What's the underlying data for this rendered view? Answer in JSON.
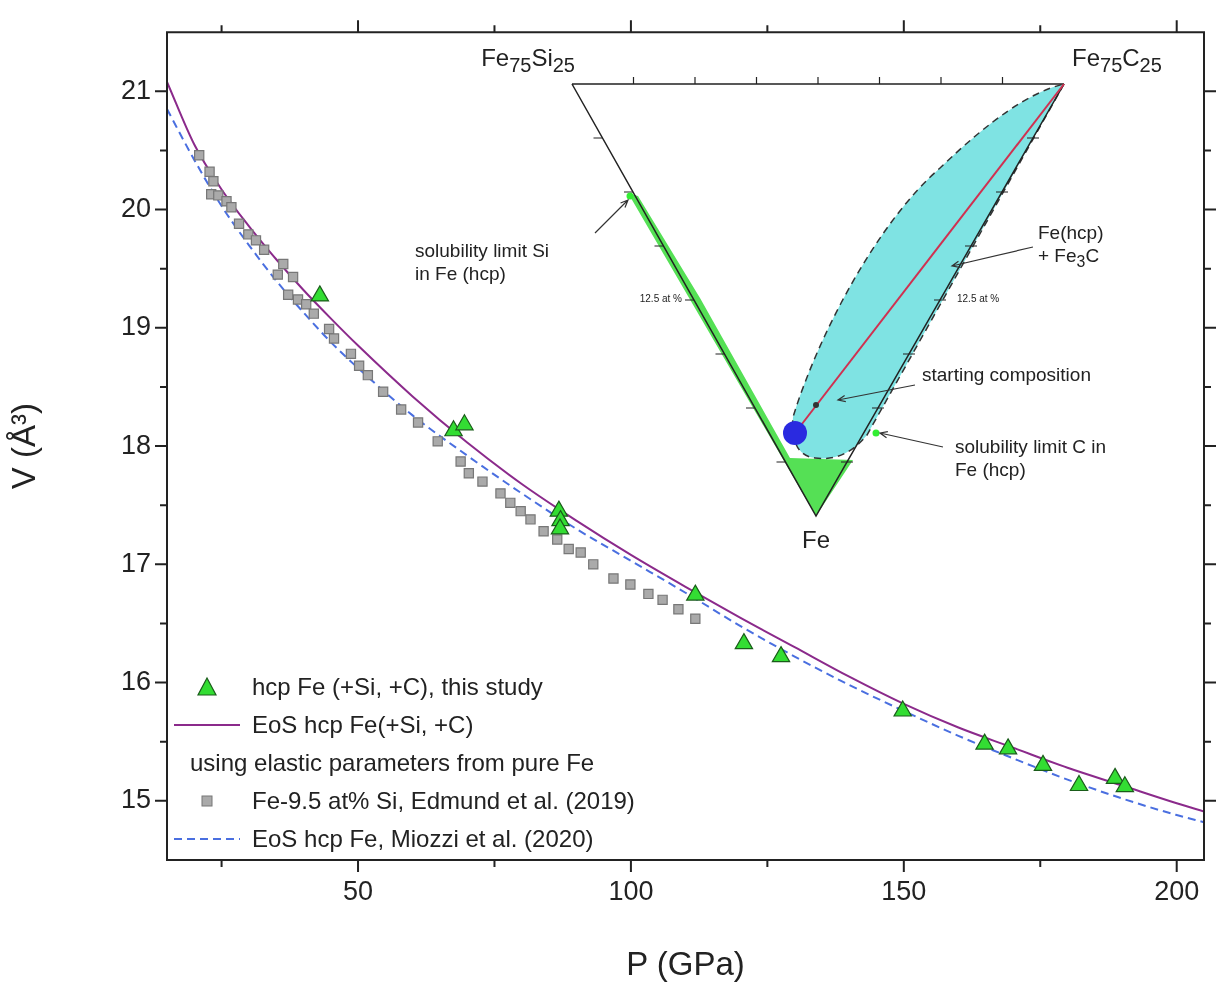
{
  "chart_data": {
    "type": "scatter",
    "xlabel": "P (GPa)",
    "ylabel": "V (Å³)",
    "xlim": [
      15,
      205
    ],
    "ylim": [
      14.5,
      21.5
    ],
    "xticks": [
      {
        "value": 25,
        "label": null
      },
      50,
      {
        "value": 75,
        "label": null
      },
      100,
      {
        "value": 125,
        "label": null
      },
      150,
      {
        "value": 175,
        "label": null
      },
      200
    ],
    "yticks": [
      15,
      {
        "value": 15.5,
        "label": null
      },
      16,
      {
        "value": 16.5,
        "label": null
      },
      17,
      {
        "value": 17.5,
        "label": null
      },
      18,
      {
        "value": 18.5,
        "label": null
      },
      19,
      {
        "value": 19.5,
        "label": null
      },
      20,
      {
        "value": 20.5,
        "label": null
      },
      21
    ],
    "legend": "bottom left",
    "series": [
      {
        "name": "hcp Fe (+Si, +C), this study",
        "type": "scatter",
        "marker": "triangle",
        "color": "#33dd33",
        "x": [
          43.0,
          67.5,
          69.5,
          86.8,
          87.1,
          87.0,
          111.8,
          120.7,
          127.5,
          149.8,
          164.8,
          169.1,
          175.5,
          182.1,
          188.7,
          190.5
        ],
        "values": [
          19.27,
          18.13,
          18.18,
          17.45,
          17.37,
          17.3,
          16.74,
          16.33,
          16.22,
          15.76,
          15.48,
          15.44,
          15.3,
          15.13,
          15.19,
          15.12
        ]
      },
      {
        "name": "EoS hcp Fe(+Si, +C)\nusing elastic parameters from pure Fe",
        "type": "line",
        "marker": "none",
        "line_style": "solid",
        "color": "#8b2a8b",
        "x": [
          15,
          20,
          25,
          30,
          35,
          40,
          45,
          50,
          60,
          70,
          80,
          90,
          100,
          110,
          120,
          130,
          140,
          150,
          160,
          170,
          180,
          190,
          200,
          205
        ],
        "values": [
          21.08,
          20.55,
          20.17,
          19.86,
          19.58,
          19.32,
          19.08,
          18.85,
          18.42,
          18.03,
          17.68,
          17.37,
          17.08,
          16.81,
          16.55,
          16.3,
          16.05,
          15.82,
          15.62,
          15.45,
          15.28,
          15.13,
          14.98,
          14.91
        ]
      },
      {
        "name": "Fe-9.5 at% Si, Edmund et al. (2019)",
        "type": "scatter",
        "marker": "square",
        "color": "#aaaaaa",
        "x": [
          20.9,
          22.8,
          23.5,
          23.1,
          24.4,
          25.9,
          26.8,
          28.2,
          29.9,
          31.3,
          32.8,
          36.3,
          35.3,
          38.1,
          37.2,
          39.0,
          40.5,
          41.9,
          44.7,
          45.6,
          48.7,
          50.2,
          51.8,
          54.6,
          57.9,
          61.0,
          64.6,
          68.8,
          70.3,
          72.8,
          76.1,
          77.9,
          79.8,
          81.6,
          84.0,
          86.5,
          88.6,
          90.8,
          93.1,
          96.8,
          99.9,
          103.2,
          105.8,
          108.7,
          111.8
        ],
        "values": [
          20.46,
          20.32,
          20.24,
          20.13,
          20.12,
          20.07,
          20.02,
          19.88,
          19.79,
          19.74,
          19.66,
          19.54,
          19.45,
          19.43,
          19.28,
          19.24,
          19.2,
          19.12,
          18.99,
          18.91,
          18.78,
          18.68,
          18.6,
          18.46,
          18.31,
          18.2,
          18.04,
          17.87,
          17.77,
          17.7,
          17.6,
          17.52,
          17.45,
          17.38,
          17.28,
          17.21,
          17.13,
          17.1,
          17.0,
          16.88,
          16.83,
          16.75,
          16.7,
          16.62,
          16.54
        ]
      },
      {
        "name": "EoS hcp Fe, Miozzi et al. (2020)",
        "type": "line",
        "marker": "none",
        "line_style": "dashed",
        "color": "#4a6fe0",
        "x": [
          15,
          20,
          25,
          30,
          35,
          40,
          45,
          50,
          60,
          70,
          80,
          90,
          100,
          110,
          120,
          130,
          140,
          150,
          160,
          170,
          180,
          190,
          200,
          205
        ],
        "values": [
          20.85,
          20.42,
          20.03,
          19.7,
          19.4,
          19.13,
          18.88,
          18.66,
          18.26,
          17.92,
          17.6,
          17.3,
          17.03,
          16.76,
          16.48,
          16.22,
          15.98,
          15.76,
          15.55,
          15.36,
          15.18,
          15.02,
          14.88,
          14.82
        ]
      }
    ],
    "annotations": [
      "Fe$_{75}$Si$_{25}$",
      "Fe$_{75}$C$_{25}$",
      "Fe",
      "solubility limit Si\nin Fe (hcp)",
      "12.5 at %",
      "12.5 at %",
      "Fe(hcp)\n+ Fe$_{3}$C",
      "starting composition",
      "solubility limit C in\nFe (hcp)"
    ]
  }
}
